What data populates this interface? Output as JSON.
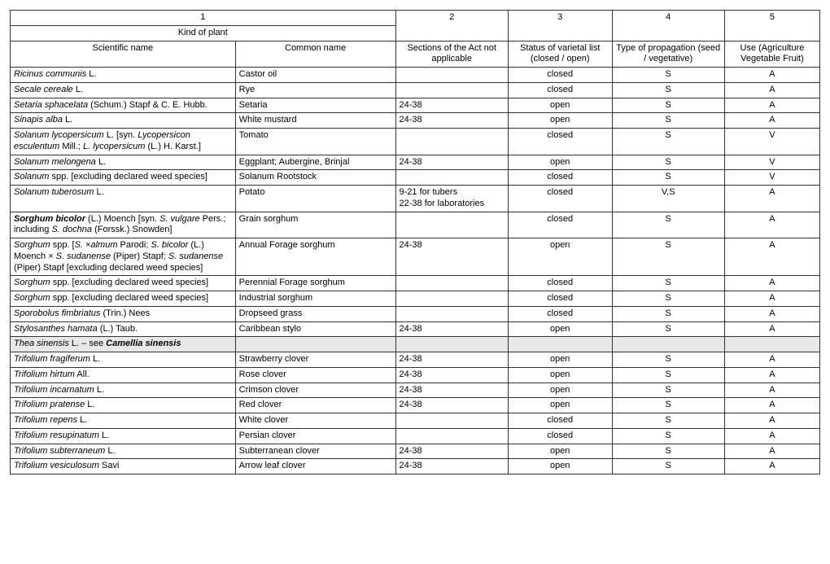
{
  "header": {
    "col1_num": "1",
    "col2_num": "2",
    "col3_num": "3",
    "col4_num": "4",
    "col5_num": "5",
    "kind_of_plant": "Kind of plant",
    "scientific_name": "Scientific name",
    "common_name": "Common name",
    "sections": "Sections of the Act not applicable",
    "status": "Status of varietal list (closed / open)",
    "propagation": "Type of propagation (seed / vegetative)",
    "use": "Use (Agriculture Vegetable Fruit)"
  },
  "colwidths": {
    "sci": 260,
    "common": 185,
    "sections": 130,
    "status": 120,
    "prop": 130,
    "use": 110
  },
  "rows": [
    {
      "sci_html": "<i>Ricinus communis</i> L.",
      "common": "Castor oil",
      "sections": "",
      "status": "closed",
      "prop": "S",
      "use": "A",
      "shaded": false
    },
    {
      "sci_html": "<i>Secale cereale</i> L.",
      "common": "Rye",
      "sections": "",
      "status": "closed",
      "prop": "S",
      "use": "A",
      "shaded": false
    },
    {
      "sci_html": "<i>Setaria sphacelata</i> (Schum.) Stapf &amp; C. E. Hubb.",
      "common": "Setaria",
      "sections": "24-38",
      "status": "open",
      "prop": "S",
      "use": "A",
      "shaded": false
    },
    {
      "sci_html": "<i>Sinapis alba</i> L.",
      "common": "White mustard",
      "sections": "24-38",
      "status": "open",
      "prop": "S",
      "use": "A",
      "shaded": false
    },
    {
      "sci_html": "<i>Solanum lycopersicum</i> L. [syn. <i>Lycopersicon esculentum</i> Mill.; <i>L. lycopersicum</i> (L.) H. Karst.]",
      "common": "Tomato",
      "sections": "",
      "status": "closed",
      "prop": "S",
      "use": "V",
      "shaded": false
    },
    {
      "sci_html": "<i>Solanum melongena</i> L.",
      "common": "Eggplant; Aubergine, Brinjal",
      "sections": "24-38",
      "status": "open",
      "prop": "S",
      "use": "V",
      "shaded": false
    },
    {
      "sci_html": "<i>Solanum</i> spp. [excluding declared weed species]",
      "common": "Solanum Rootstock",
      "sections": "",
      "status": "closed",
      "prop": "S",
      "use": "V",
      "shaded": false
    },
    {
      "sci_html": "<i>Solanum tuberosum</i> L.",
      "common": "Potato",
      "sections": "9-21 for tubers\n22-38 for laboratories",
      "status": "closed",
      "prop": "V,S",
      "use": "A",
      "shaded": false
    },
    {
      "sci_html": "<i><b>Sorghum bicolor</b></i> (L.) Moench [syn. <i>S. vulgare</i> Pers.; including <i>S. dochna</i> (Forssk.) Snowden]",
      "common": "Grain sorghum",
      "sections": "",
      "status": "closed",
      "prop": "S",
      "use": "A",
      "shaded": false
    },
    {
      "sci_html": "<i>Sorghum</i> spp. [<i>S. ×almum</i> Parodi; <i>S. bicolor</i> (L.) Moench × <i>S. sudanense</i> (Piper) Stapf; <i>S. sudanense</i> (Piper) Stapf  [excluding declared weed species]",
      "common": "Annual Forage sorghum",
      "sections": "24-38",
      "status": "open",
      "prop": "S",
      "use": "A",
      "shaded": false
    },
    {
      "sci_html": "<i>Sorghum</i> spp. [excluding declared weed species]",
      "common": "Perennial Forage sorghum",
      "sections": "",
      "status": "closed",
      "prop": "S",
      "use": "A",
      "shaded": false
    },
    {
      "sci_html": "<i>Sorghum</i> spp. [excluding declared weed species]",
      "common": "Industrial sorghum",
      "sections": "",
      "status": "closed",
      "prop": "S",
      "use": "A",
      "shaded": false
    },
    {
      "sci_html": "<i>Sporobolus fimbriatus</i> (Trin.) Nees",
      "common": "Dropseed grass",
      "sections": "",
      "status": "closed",
      "prop": "S",
      "use": "A",
      "shaded": false
    },
    {
      "sci_html": "<i>Stylosanthes hamata</i> (L.) Taub.",
      "common": "Caribbean stylo",
      "sections": "24-38",
      "status": "open",
      "prop": "S",
      "use": "A",
      "shaded": false
    },
    {
      "sci_html": "<i>Thea sinensis</i> L. – see <i><b>Camellia sinensis</b></i>",
      "common": "",
      "sections": "",
      "status": "",
      "prop": "",
      "use": "",
      "shaded": true
    },
    {
      "sci_html": "<i>Trifolium fragiferum</i> L.",
      "common": "Strawberry clover",
      "sections": "24-38",
      "status": "open",
      "prop": "S",
      "use": "A",
      "shaded": false
    },
    {
      "sci_html": "<i>Trifolium hirtum</i> All.",
      "common": "Rose clover",
      "sections": "24-38",
      "status": "open",
      "prop": "S",
      "use": "A",
      "shaded": false
    },
    {
      "sci_html": "<i>Trifolium incarnatum</i> L.",
      "common": "Crimson clover",
      "sections": "24-38",
      "status": "open",
      "prop": "S",
      "use": "A",
      "shaded": false
    },
    {
      "sci_html": "<i>Trifolium pratense</i> L.",
      "common": "Red clover",
      "sections": "24-38",
      "status": "open",
      "prop": "S",
      "use": "A",
      "shaded": false
    },
    {
      "sci_html": "<i>Trifolium repens</i> L.",
      "common": "White clover",
      "sections": "",
      "status": "closed",
      "prop": "S",
      "use": "A",
      "shaded": false
    },
    {
      "sci_html": "<i>Trifolium resupinatum</i> L.",
      "common": "Persian clover",
      "sections": "",
      "status": "closed",
      "prop": "S",
      "use": "A",
      "shaded": false
    },
    {
      "sci_html": "<i>Trifolium subterraneum</i> L.",
      "common": "Subterranean clover",
      "sections": "24-38",
      "status": "open",
      "prop": "S",
      "use": "A",
      "shaded": false
    },
    {
      "sci_html": "<i>Trifolium vesiculosum</i> Savi",
      "common": "Arrow leaf clover",
      "sections": "24-38",
      "status": "open",
      "prop": "S",
      "use": "A",
      "shaded": false
    }
  ]
}
